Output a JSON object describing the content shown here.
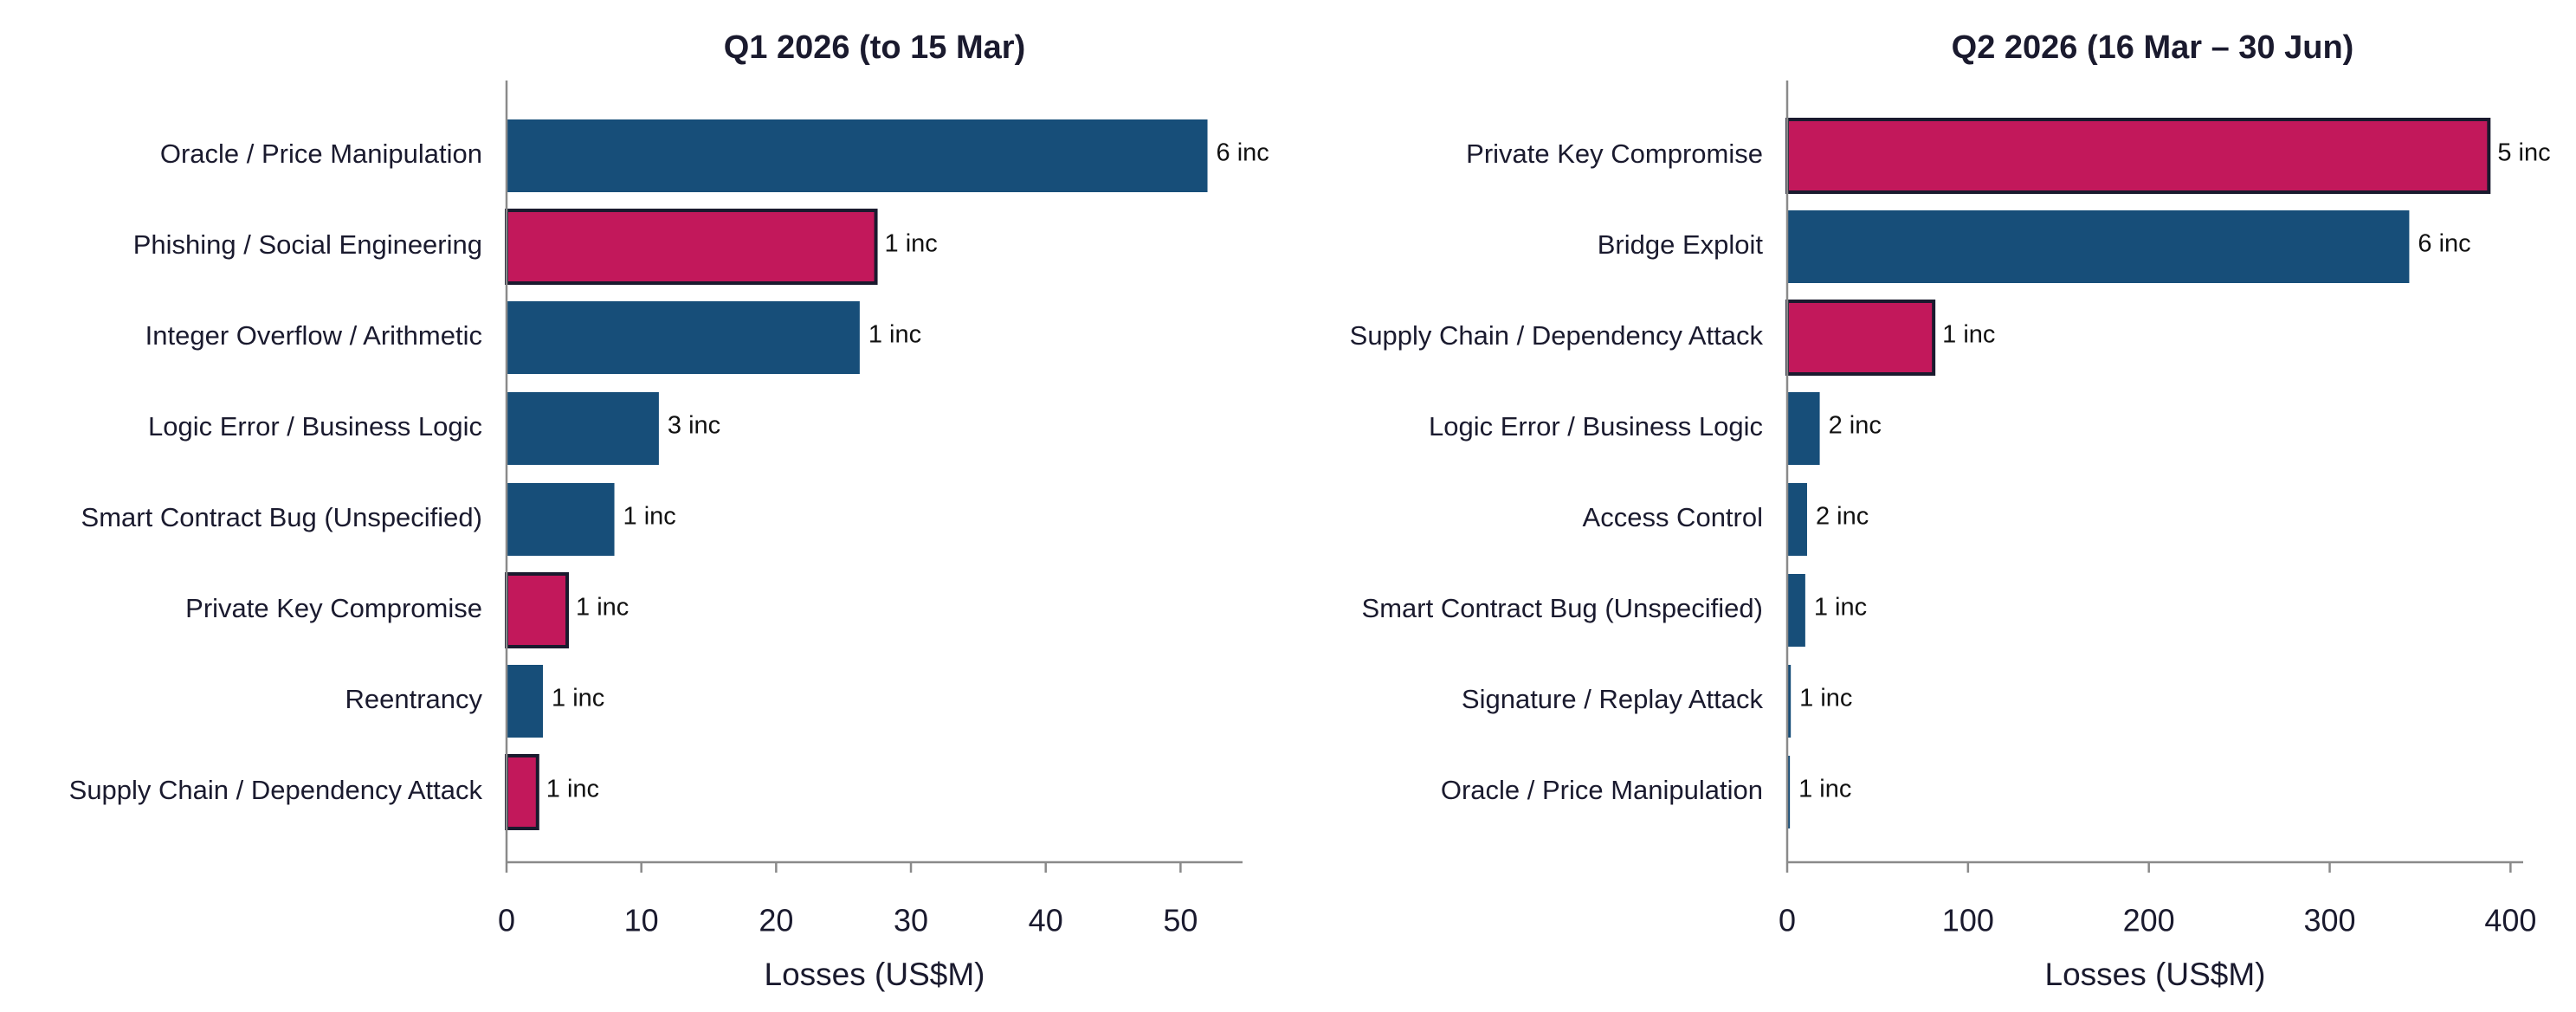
{
  "colors": {
    "default_bar": "#174e79",
    "highlight_bar": "#c2185b",
    "highlight_outline": "#1a1a2e",
    "axis": "#8a8a8a",
    "text": "#1a1a2e"
  },
  "chart_data": [
    {
      "type": "bar",
      "orientation": "horizontal",
      "title": "Q1 2026 (to 15 Mar)",
      "xlabel": "Losses (US$M)",
      "ylabel": "",
      "xlim": [
        0,
        54.6
      ],
      "xticks": [
        0,
        10,
        20,
        30,
        40,
        50
      ],
      "categories": [
        "Oracle / Price Manipulation",
        "Phishing / Social Engineering",
        "Integer Overflow / Arithmetic",
        "Logic Error / Business Logic",
        "Smart Contract Bug (Unspecified)",
        "Private Key Compromise",
        "Reentrancy",
        "Supply Chain / Dependency Attack"
      ],
      "values": [
        52.0,
        27.4,
        26.2,
        11.3,
        8.0,
        4.5,
        2.7,
        2.3
      ],
      "labels": [
        "6 inc",
        "1 inc",
        "1 inc",
        "3 inc",
        "1 inc",
        "1 inc",
        "1 inc",
        "1 inc"
      ],
      "highlighted": [
        false,
        true,
        false,
        false,
        false,
        true,
        false,
        true
      ],
      "grid": false
    },
    {
      "type": "bar",
      "orientation": "horizontal",
      "title": "Q2 2026 (16 Mar – 30 Jun)",
      "xlabel": "Losses (US$M)",
      "ylabel": "",
      "xlim": [
        0,
        407
      ],
      "xticks": [
        0,
        100,
        200,
        300,
        400
      ],
      "categories": [
        "Private Key Compromise",
        "Bridge Exploit",
        "Supply Chain / Dependency Attack",
        "Logic Error / Business Logic",
        "Access Control",
        "Smart Contract Bug (Unspecified)",
        "Signature / Replay Attack",
        "Oracle / Price Manipulation"
      ],
      "values": [
        388,
        344,
        81,
        18,
        11,
        10,
        2,
        1.5
      ],
      "labels": [
        "5 inc",
        "6 inc",
        "1 inc",
        "2 inc",
        "2 inc",
        "1 inc",
        "1 inc",
        "1 inc"
      ],
      "highlighted": [
        true,
        false,
        true,
        false,
        false,
        false,
        false,
        false
      ],
      "grid": false
    }
  ]
}
